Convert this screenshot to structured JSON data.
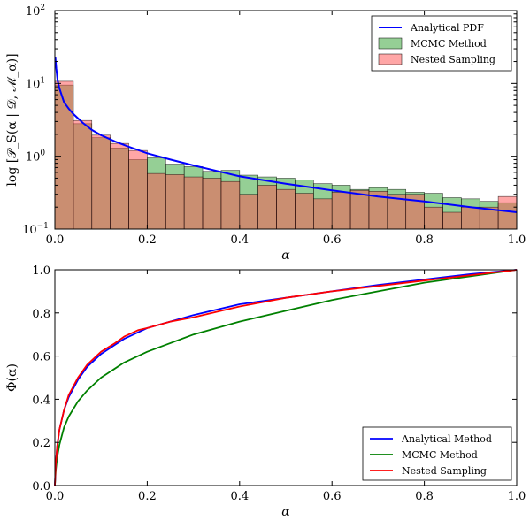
{
  "chart_data": [
    {
      "type": "bar",
      "yscale": "log",
      "xlabel": "α",
      "ylabel": "log [𝒫_S(α | 𝒟, ℳ_α)]",
      "xlim": [
        0.0,
        1.0
      ],
      "ylim": [
        0.1,
        100
      ],
      "xticks": [
        "0.0",
        "0.2",
        "0.4",
        "0.6",
        "0.8",
        "1.0"
      ],
      "yticks": [
        {
          "base": "10",
          "exp": "−1",
          "value": 0.1
        },
        {
          "base": "10",
          "exp": "0",
          "value": 1
        },
        {
          "base": "10",
          "exp": "1",
          "value": 10
        },
        {
          "base": "10",
          "exp": "2",
          "value": 100
        }
      ],
      "legend_position": "top-right",
      "bin_edges": [
        0.0,
        0.04,
        0.08,
        0.12,
        0.16,
        0.2,
        0.24,
        0.28,
        0.32,
        0.36,
        0.4,
        0.44,
        0.48,
        0.52,
        0.56,
        0.6,
        0.64,
        0.68,
        0.72,
        0.76,
        0.8,
        0.84,
        0.88,
        0.92,
        0.96,
        1.0
      ],
      "series": [
        {
          "name": "MCMC Method",
          "kind": "histogram",
          "color": "#2ca02c",
          "values": [
            9.5,
            2.8,
            1.8,
            1.3,
            0.9,
            0.95,
            0.78,
            0.72,
            0.62,
            0.64,
            0.55,
            0.52,
            0.5,
            0.47,
            0.42,
            0.4,
            0.35,
            0.37,
            0.35,
            0.32,
            0.31,
            0.27,
            0.26,
            0.24,
            0.23
          ]
        },
        {
          "name": "Nested Sampling",
          "kind": "histogram",
          "color": "#ff4d4d",
          "values": [
            10.7,
            3.1,
            1.95,
            1.5,
            1.2,
            0.58,
            0.56,
            0.52,
            0.5,
            0.45,
            0.3,
            0.4,
            0.35,
            0.31,
            0.26,
            0.32,
            0.34,
            0.33,
            0.3,
            0.3,
            0.2,
            0.17,
            0.2,
            0.2,
            0.28
          ]
        },
        {
          "name": "Analytical PDF",
          "kind": "line",
          "color": "#0000ff",
          "x": [
            0.001,
            0.003,
            0.006,
            0.01,
            0.02,
            0.03,
            0.04,
            0.06,
            0.08,
            0.1,
            0.13,
            0.16,
            0.2,
            0.25,
            0.3,
            0.35,
            0.4,
            0.5,
            0.6,
            0.7,
            0.8,
            0.9,
            1.0
          ],
          "values": [
            23,
            16,
            11,
            8.5,
            5.5,
            4.5,
            3.8,
            2.9,
            2.3,
            1.95,
            1.6,
            1.35,
            1.1,
            0.9,
            0.75,
            0.63,
            0.53,
            0.42,
            0.34,
            0.28,
            0.24,
            0.2,
            0.17
          ]
        }
      ]
    },
    {
      "type": "line",
      "xlabel": "α",
      "ylabel": "Φ(α)",
      "xlim": [
        0.0,
        1.0
      ],
      "ylim": [
        0.0,
        1.0
      ],
      "xticks": [
        "0.0",
        "0.2",
        "0.4",
        "0.6",
        "0.8",
        "1.0"
      ],
      "yticks": [
        "0.0",
        "0.2",
        "0.4",
        "0.6",
        "0.8",
        "1.0"
      ],
      "legend_position": "bottom-right",
      "series": [
        {
          "name": "Analytical Method",
          "color": "#0000ff",
          "x": [
            0,
            0.002,
            0.005,
            0.01,
            0.02,
            0.03,
            0.05,
            0.07,
            0.1,
            0.15,
            0.2,
            0.3,
            0.4,
            0.5,
            0.6,
            0.7,
            0.8,
            0.9,
            1.0
          ],
          "values": [
            0,
            0.1,
            0.18,
            0.26,
            0.35,
            0.41,
            0.49,
            0.55,
            0.61,
            0.68,
            0.73,
            0.79,
            0.84,
            0.87,
            0.9,
            0.93,
            0.955,
            0.98,
            1.0
          ]
        },
        {
          "name": "MCMC Method",
          "color": "#008000",
          "x": [
            0,
            0.002,
            0.005,
            0.01,
            0.02,
            0.03,
            0.05,
            0.07,
            0.1,
            0.15,
            0.2,
            0.3,
            0.4,
            0.5,
            0.6,
            0.7,
            0.8,
            0.9,
            1.0
          ],
          "values": [
            0,
            0.07,
            0.13,
            0.19,
            0.27,
            0.32,
            0.39,
            0.44,
            0.5,
            0.57,
            0.62,
            0.7,
            0.76,
            0.81,
            0.86,
            0.9,
            0.94,
            0.97,
            1.0
          ]
        },
        {
          "name": "Nested Sampling",
          "color": "#ff0000",
          "x": [
            0,
            0.002,
            0.005,
            0.01,
            0.02,
            0.03,
            0.05,
            0.07,
            0.1,
            0.13,
            0.15,
            0.18,
            0.2,
            0.25,
            0.3,
            0.4,
            0.5,
            0.6,
            0.7,
            0.8,
            0.9,
            1.0
          ],
          "values": [
            0,
            0.1,
            0.18,
            0.26,
            0.35,
            0.42,
            0.5,
            0.56,
            0.62,
            0.66,
            0.69,
            0.72,
            0.73,
            0.76,
            0.78,
            0.83,
            0.87,
            0.9,
            0.925,
            0.95,
            0.975,
            1.0
          ]
        }
      ]
    }
  ]
}
